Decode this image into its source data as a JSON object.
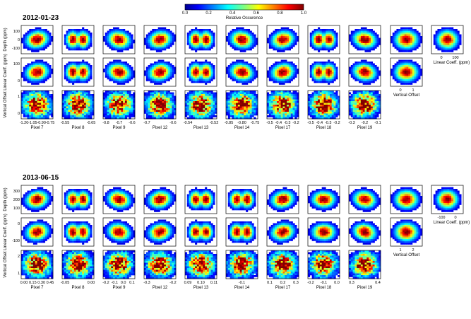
{
  "colorbar": {
    "label": "Relative Occurence",
    "ticks": [
      "0.0",
      "0.2",
      "0.4",
      "0.6",
      "0.8",
      "1.0"
    ]
  },
  "chart_data": [
    {
      "type": "heatmap",
      "title": "2012-01-23",
      "pixels": [
        "Pixel 7",
        "Pixel 8",
        "Pixel 9",
        "Pixel 12",
        "Pixel 13",
        "Pixel 14",
        "Pixel 17",
        "Pixel 18",
        "Pixel 19"
      ],
      "row_labels": [
        "Depth (ppm)",
        "Linear Coeff. (ppm)",
        "Vertical Offset"
      ],
      "depth_ticks": [
        "100",
        "0",
        "-100"
      ],
      "linear_ticks": [
        "100",
        "0"
      ],
      "offset_ticks": [
        "1",
        "0"
      ],
      "pixel_xticks": [
        [
          "-1.20",
          "-1.05",
          "-0.90",
          "-0.75"
        ],
        [
          "-0.55",
          "-0.65"
        ],
        [
          "-0.8",
          "-0.7",
          "-0.6"
        ],
        [
          "-0.7",
          "-0.6"
        ],
        [
          "-0.54",
          "-0.52"
        ],
        [
          "-0.85",
          "-0.80",
          "-0.75"
        ],
        [
          "-0.5",
          "-0.4",
          "-0.3",
          "-0.2"
        ],
        [
          "-0.5",
          "-0.4",
          "-0.3",
          "-0.2"
        ],
        [
          "-0.3",
          "-0.2",
          "-0.1"
        ]
      ],
      "vertical_offset_xticks": [
        "0",
        "1"
      ],
      "linear_coeff_xticks": [
        "0",
        "100"
      ],
      "vertical_offset_xlabel": "Vertical Offset",
      "linear_coeff_xlabel": "Linear Coeff. (ppm)"
    },
    {
      "type": "heatmap",
      "title": "2013-06-15",
      "pixels": [
        "Pixel 7",
        "Pixel 8",
        "Pixel 9",
        "Pixel 12",
        "Pixel 13",
        "Pixel 14",
        "Pixel 17",
        "Pixel 18",
        "Pixel 19"
      ],
      "row_labels": [
        "Depth (ppm)",
        "Linear Coeff. (ppm)",
        "Vertical Offset"
      ],
      "depth_ticks": [
        "300",
        "200",
        "100"
      ],
      "linear_ticks": [
        "0",
        "-100"
      ],
      "offset_ticks": [
        "2",
        "1"
      ],
      "pixel_xticks": [
        [
          "0.00",
          "0.15",
          "0.30",
          "0.45"
        ],
        [
          "-0.05",
          "0.00"
        ],
        [
          "-0.2",
          "-0.1",
          "0.0",
          "0.1"
        ],
        [
          "-0.3",
          "-0.2"
        ],
        [
          "0.09",
          "0.10",
          "0.11"
        ],
        [
          "-0.1"
        ],
        [
          "0.1",
          "0.2",
          "0.3"
        ],
        [
          "-0.2",
          "-0.1",
          "0.0"
        ],
        [
          "0.3",
          "0.4"
        ]
      ],
      "vertical_offset_xticks": [
        "1",
        "2"
      ],
      "linear_coeff_xticks": [
        "-100",
        "0"
      ],
      "vertical_offset_xlabel": "Vertical Offset",
      "linear_coeff_xlabel": "Linear Coeff. (ppm)"
    }
  ]
}
